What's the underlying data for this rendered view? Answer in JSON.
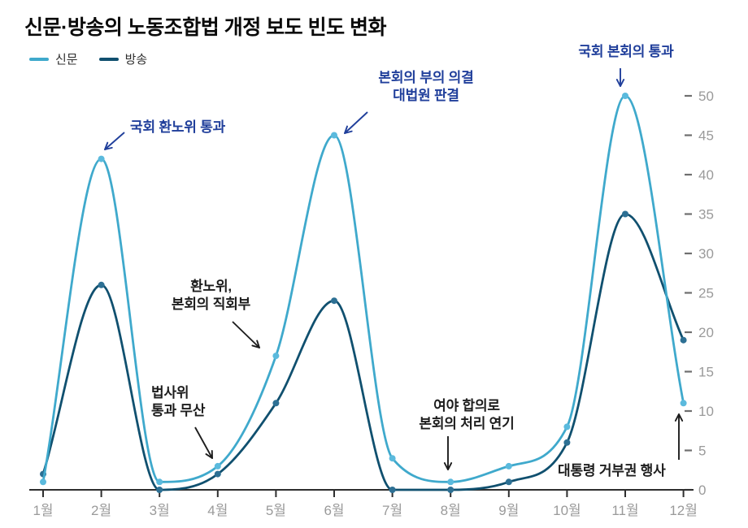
{
  "page": {
    "title": "신문·방송의 노동조합법 개정 보도 빈도 변화"
  },
  "legend": {
    "items": [
      {
        "label": "신문",
        "color": "#3fa9cc"
      },
      {
        "label": "방송",
        "color": "#10506f"
      }
    ]
  },
  "chart_data": {
    "type": "line",
    "title": "신문·방송의 노동조합법 개정 보도 빈도 변화",
    "categories": [
      "1월",
      "2월",
      "3월",
      "4월",
      "5월",
      "6월",
      "7월",
      "8월",
      "9월",
      "10월",
      "11월",
      "12월"
    ],
    "series": [
      {
        "name": "신문",
        "color": "#3fa9cc",
        "marker_color": "#5bbadd",
        "values": [
          1,
          42,
          1,
          3,
          17,
          45,
          4,
          1,
          3,
          8,
          50,
          11
        ]
      },
      {
        "name": "방송",
        "color": "#10506f",
        "marker_color": "#2d7094",
        "values": [
          2,
          26,
          0,
          2,
          11,
          24,
          0,
          0,
          1,
          6,
          35,
          19
        ]
      }
    ],
    "xlabel": "",
    "ylabel": "",
    "ylim": [
      0,
      50
    ],
    "y_ticks": [
      0,
      5,
      10,
      15,
      20,
      25,
      30,
      35,
      40,
      45,
      50
    ],
    "y_axis_side": "right",
    "grid": false,
    "legend_position": "top-left"
  },
  "annotations": [
    {
      "id": "hwannowi-pass",
      "text": "국회 환노위 통과",
      "color": "#203f9b",
      "anchor_month": "2월",
      "anchor_series": "신문"
    },
    {
      "id": "bonhoeui-buui",
      "text": "본회의 부의 의결\n대법원 판결",
      "color": "#203f9b",
      "anchor_month": "6월",
      "anchor_series": "신문"
    },
    {
      "id": "bonhoeui-pass",
      "text": "국회 본회의 통과",
      "color": "#203f9b",
      "anchor_month": "11월",
      "anchor_series": "신문"
    },
    {
      "id": "jikhoebu",
      "text": "환노위,\n본회의 직회부",
      "color": "#1d1d1d",
      "anchor_month": "5월",
      "anchor_series": "신문"
    },
    {
      "id": "beopsawi-musan",
      "text": "법사위\n통과 무산",
      "color": "#1d1d1d",
      "anchor_month": "4월",
      "anchor_series": "신문"
    },
    {
      "id": "cheori-yeongi",
      "text": "여야 합의로\n본회의 처리 연기",
      "color": "#1d1d1d",
      "anchor_month": "8월",
      "anchor_series": "신문"
    },
    {
      "id": "geobukwon",
      "text": "대통령 거부권 행사",
      "color": "#1d1d1d",
      "anchor_month": "12월",
      "anchor_series": "신문"
    }
  ],
  "axis_colors": {
    "axis_line": "#2e2e2e",
    "tick_label": "#9a9a9a",
    "y_dash": "#6f6f6f"
  }
}
